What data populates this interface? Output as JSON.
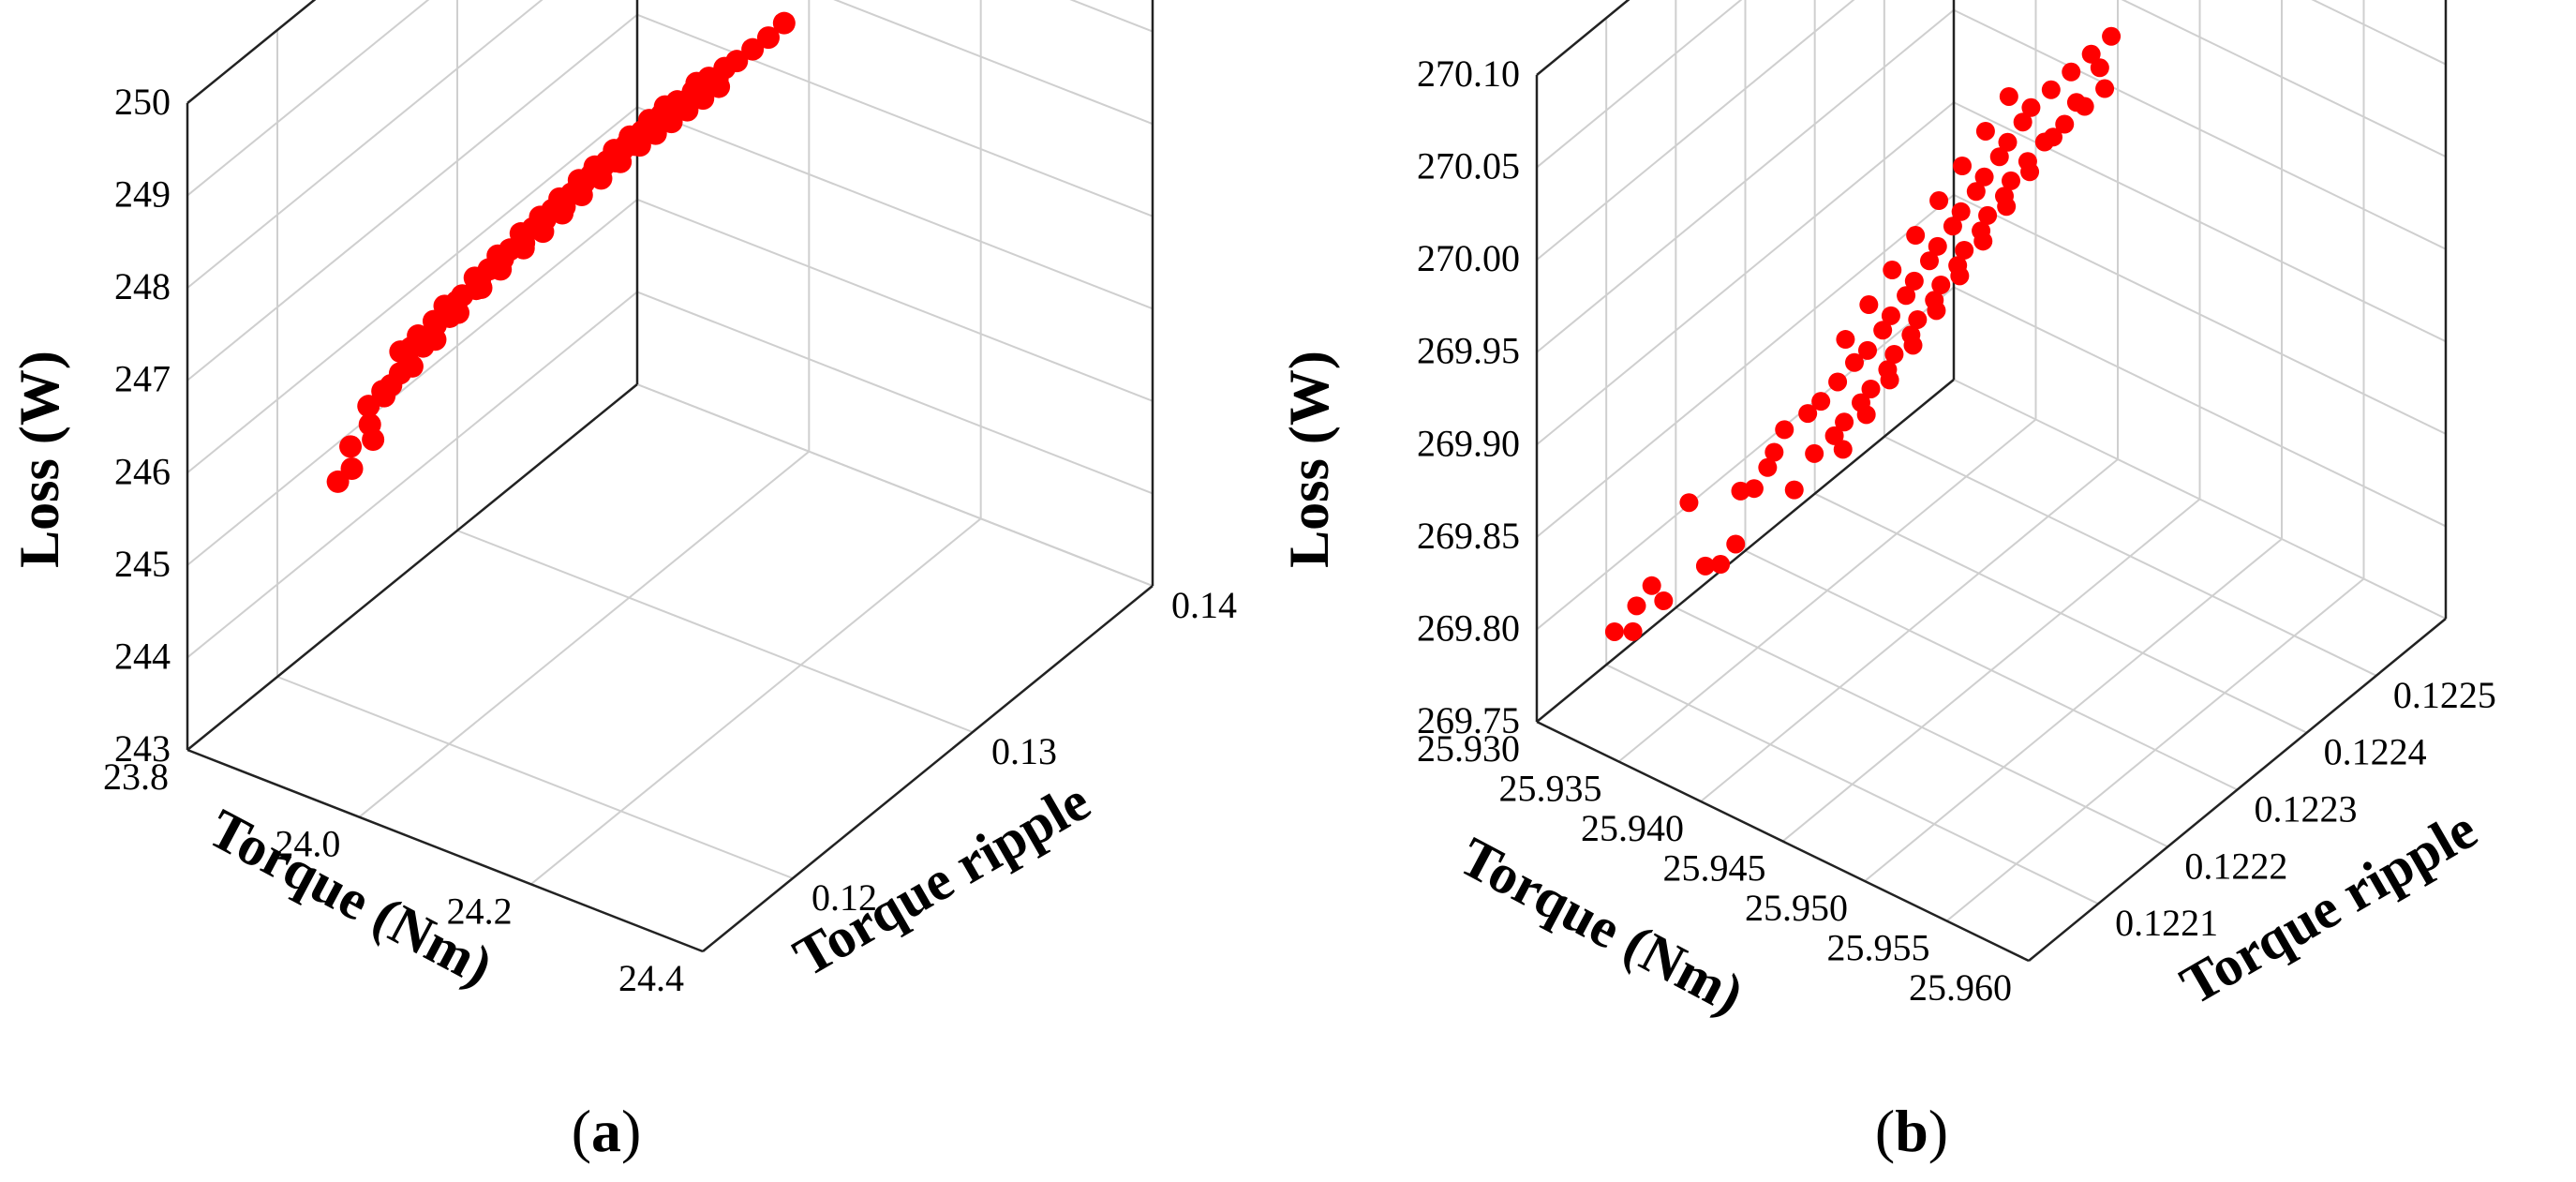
{
  "chart_data": [
    {
      "type": "scatter",
      "panel": "(a)",
      "panel_letter": "a",
      "title": "",
      "xlabel": "Torque (Nm)",
      "ylabel": "Torque ripple",
      "zlabel": "Loss (W)",
      "xlim": [
        23.8,
        24.4
      ],
      "ylim": [
        0.115,
        0.14
      ],
      "zlim": [
        243,
        250
      ],
      "x_ticks": [
        "23.8",
        "24.0",
        "24.2",
        "24.4"
      ],
      "x_tick_values": [
        23.8,
        24.0,
        24.2,
        24.4
      ],
      "y_ticks": [
        "0.12",
        "0.13",
        "0.14"
      ],
      "y_tick_values": [
        0.12,
        0.13,
        0.14
      ],
      "z_ticks": [
        "243",
        "244",
        "245",
        "246",
        "247",
        "248",
        "249",
        "250"
      ],
      "z_tick_values": [
        243,
        244,
        245,
        246,
        247,
        248,
        249,
        250
      ],
      "grid": true,
      "marker_color": "#ff0000",
      "series": [
        {
          "points": [
            [
              23.86,
              0.1205,
              245.25
            ],
            [
              23.86,
              0.1212,
              245.52
            ],
            [
              23.87,
              0.1208,
              245.38
            ],
            [
              23.87,
              0.1218,
              245.7
            ],
            [
              23.88,
              0.1215,
              245.62
            ],
            [
              23.87,
              0.1225,
              245.95
            ],
            [
              23.88,
              0.123,
              246.1
            ],
            [
              23.87,
              0.1235,
              246.22
            ],
            [
              23.88,
              0.124,
              246.35
            ],
            [
              23.89,
              0.1245,
              246.42
            ],
            [
              23.89,
              0.1238,
              246.3
            ],
            [
              23.89,
              0.125,
              246.55
            ],
            [
              23.9,
              0.1255,
              246.62
            ],
            [
              23.9,
              0.1248,
              246.5
            ],
            [
              23.9,
              0.1262,
              246.7
            ],
            [
              23.91,
              0.1265,
              246.78
            ],
            [
              23.91,
              0.1258,
              246.68
            ],
            [
              23.91,
              0.127,
              246.85
            ],
            [
              23.92,
              0.1272,
              246.92
            ],
            [
              23.92,
              0.1266,
              246.84
            ],
            [
              23.92,
              0.1278,
              247.0
            ],
            [
              23.93,
              0.128,
              247.06
            ],
            [
              23.93,
              0.1275,
              246.98
            ],
            [
              23.93,
              0.1284,
              247.12
            ],
            [
              23.94,
              0.1286,
              247.2
            ],
            [
              23.94,
              0.128,
              247.1
            ],
            [
              23.94,
              0.129,
              247.26
            ],
            [
              23.95,
              0.1292,
              247.32
            ],
            [
              23.95,
              0.1288,
              247.24
            ],
            [
              23.95,
              0.1296,
              247.4
            ],
            [
              23.96,
              0.1298,
              247.46
            ],
            [
              23.96,
              0.1292,
              247.38
            ],
            [
              23.96,
              0.13,
              247.52
            ],
            [
              23.97,
              0.1302,
              247.58
            ],
            [
              23.97,
              0.1298,
              247.5
            ],
            [
              23.97,
              0.1306,
              247.64
            ],
            [
              23.98,
              0.1308,
              247.7
            ],
            [
              23.98,
              0.1302,
              247.62
            ],
            [
              23.98,
              0.131,
              247.76
            ],
            [
              23.99,
              0.1312,
              247.82
            ],
            [
              23.99,
              0.1308,
              247.74
            ],
            [
              23.99,
              0.1316,
              247.88
            ],
            [
              24.0,
              0.1318,
              247.94
            ],
            [
              24.0,
              0.1312,
              247.86
            ],
            [
              24.0,
              0.132,
              248.0
            ],
            [
              24.01,
              0.1322,
              248.06
            ],
            [
              24.01,
              0.1318,
              247.98
            ],
            [
              24.02,
              0.1326,
              248.14
            ],
            [
              24.02,
              0.1328,
              248.2
            ],
            [
              24.02,
              0.1322,
              248.1
            ],
            [
              24.03,
              0.133,
              248.26
            ],
            [
              24.03,
              0.1326,
              248.18
            ],
            [
              24.04,
              0.1334,
              248.34
            ],
            [
              24.04,
              0.133,
              248.28
            ],
            [
              24.05,
              0.1336,
              248.42
            ],
            [
              24.06,
              0.134,
              248.52
            ],
            [
              24.07,
              0.1344,
              248.62
            ],
            [
              24.08,
              0.1348,
              248.75
            ],
            [
              23.88,
              0.1225,
              246.05
            ],
            [
              23.89,
              0.1232,
              246.18
            ],
            [
              23.9,
              0.124,
              246.38
            ],
            [
              23.91,
              0.1248,
              246.58
            ],
            [
              23.92,
              0.1256,
              246.76
            ],
            [
              23.93,
              0.1262,
              246.9
            ],
            [
              23.94,
              0.127,
              247.04
            ],
            [
              23.95,
              0.1276,
              247.16
            ],
            [
              23.96,
              0.1282,
              247.3
            ],
            [
              23.97,
              0.1288,
              247.44
            ],
            [
              23.98,
              0.1294,
              247.56
            ],
            [
              23.99,
              0.13,
              247.68
            ],
            [
              24.0,
              0.1306,
              247.8
            ],
            [
              24.01,
              0.131,
              247.9
            ],
            [
              24.02,
              0.1314,
              248.0
            ],
            [
              24.03,
              0.1318,
              248.1
            ],
            [
              24.04,
              0.1322,
              248.2
            ],
            [
              24.05,
              0.1326,
              248.3
            ],
            [
              23.86,
              0.1222,
              245.8
            ],
            [
              23.87,
              0.1226,
              245.88
            ],
            [
              23.88,
              0.1236,
              246.28
            ],
            [
              23.89,
              0.1244,
              246.48
            ],
            [
              23.9,
              0.1252,
              246.6
            ],
            [
              23.91,
              0.126,
              246.74
            ],
            [
              23.92,
              0.1268,
              246.88
            ],
            [
              23.93,
              0.1274,
              247.02
            ],
            [
              23.94,
              0.1282,
              247.16
            ],
            [
              23.95,
              0.1288,
              247.3
            ],
            [
              23.96,
              0.1294,
              247.44
            ],
            [
              23.97,
              0.13,
              247.56
            ],
            [
              23.98,
              0.1306,
              247.68
            ],
            [
              23.99,
              0.131,
              247.8
            ],
            [
              24.0,
              0.1314,
              247.92
            ],
            [
              24.01,
              0.132,
              248.04
            ]
          ]
        }
      ]
    },
    {
      "type": "scatter",
      "panel": "(b)",
      "panel_letter": "b",
      "title": "",
      "xlabel": "Torque (Nm)",
      "ylabel": "Torque ripple",
      "zlabel": "Loss (W)",
      "xlim": [
        25.93,
        25.96
      ],
      "ylim": [
        0.122,
        0.1226
      ],
      "zlim": [
        269.75,
        270.1
      ],
      "x_ticks": [
        "25.930",
        "25.935",
        "25.940",
        "25.945",
        "25.950",
        "25.955",
        "25.960"
      ],
      "x_tick_values": [
        25.93,
        25.935,
        25.94,
        25.945,
        25.95,
        25.955,
        25.96
      ],
      "y_ticks": [
        "0.1221",
        "0.1222",
        "0.1223",
        "0.1224",
        "0.1225"
      ],
      "y_tick_values": [
        0.1221,
        0.1222,
        0.1223,
        0.1224,
        0.1225
      ],
      "z_ticks": [
        "269.75",
        "269.80",
        "269.85",
        "269.90",
        "269.95",
        "270.00",
        "270.05",
        "270.10"
      ],
      "z_tick_values": [
        269.75,
        269.8,
        269.85,
        269.9,
        269.95,
        270.0,
        270.05,
        270.1
      ],
      "grid": true,
      "marker_color": "#ff0000",
      "series": [
        {
          "points": [
            [
              25.9305,
              0.1221,
              269.77
            ],
            [
              25.931,
              0.12212,
              269.78
            ],
            [
              25.9312,
              0.12211,
              269.77
            ],
            [
              25.9315,
              0.12213,
              269.79
            ],
            [
              25.9318,
              0.12214,
              269.78
            ],
            [
              25.9325,
              0.12216,
              269.83
            ],
            [
              25.9335,
              0.12216,
              269.8
            ],
            [
              25.934,
              0.12217,
              269.8
            ],
            [
              25.9345,
              0.12218,
              269.81
            ],
            [
              25.9348,
              0.12218,
              269.84
            ],
            [
              25.9352,
              0.12219,
              269.84
            ],
            [
              25.9356,
              0.1222,
              269.85
            ],
            [
              25.936,
              0.1222,
              269.86
            ],
            [
              25.9362,
              0.12221,
              269.87
            ],
            [
              25.9368,
              0.12221,
              269.84
            ],
            [
              25.9372,
              0.12222,
              269.88
            ],
            [
              25.9376,
              0.12222,
              269.86
            ],
            [
              25.938,
              0.12222,
              269.89
            ],
            [
              25.9384,
              0.12223,
              269.87
            ],
            [
              25.9386,
              0.12223,
              269.9
            ],
            [
              25.939,
              0.12223,
              269.88
            ],
            [
              25.9392,
              0.12224,
              269.91
            ],
            [
              25.9396,
              0.12224,
              269.89
            ],
            [
              25.94,
              0.12224,
              269.92
            ],
            [
              25.9402,
              0.12224,
              269.9
            ],
            [
              25.9405,
              0.12225,
              269.93
            ],
            [
              25.9408,
              0.12225,
              269.91
            ],
            [
              25.941,
              0.12225,
              269.94
            ],
            [
              25.9412,
              0.12225,
              269.92
            ],
            [
              25.9415,
              0.12226,
              269.95
            ],
            [
              25.9418,
              0.12226,
              269.93
            ],
            [
              25.942,
              0.12226,
              269.96
            ],
            [
              25.9422,
              0.12226,
              269.94
            ],
            [
              25.9425,
              0.12227,
              269.97
            ],
            [
              25.9428,
              0.12227,
              269.95
            ],
            [
              25.943,
              0.12227,
              269.98
            ],
            [
              25.9432,
              0.12227,
              269.96
            ],
            [
              25.9435,
              0.12228,
              269.99
            ],
            [
              25.9438,
              0.12228,
              269.97
            ],
            [
              25.944,
              0.12228,
              270.0
            ],
            [
              25.9442,
              0.12228,
              269.98
            ],
            [
              25.9445,
              0.12229,
              270.01
            ],
            [
              25.9448,
              0.12229,
              269.99
            ],
            [
              25.945,
              0.12229,
              270.02
            ],
            [
              25.9452,
              0.12229,
              270.0
            ],
            [
              25.9455,
              0.1223,
              270.03
            ],
            [
              25.9458,
              0.1223,
              270.01
            ],
            [
              25.946,
              0.1223,
              270.04
            ],
            [
              25.9462,
              0.1223,
              270.02
            ],
            [
              25.9465,
              0.12231,
              270.05
            ],
            [
              25.9468,
              0.12231,
              270.03
            ],
            [
              25.947,
              0.12231,
              270.06
            ],
            [
              25.9474,
              0.12232,
              270.04
            ],
            [
              25.9478,
              0.12232,
              270.07
            ],
            [
              25.9482,
              0.12233,
              270.05
            ],
            [
              25.9486,
              0.12233,
              270.08
            ],
            [
              25.949,
              0.12234,
              270.06
            ],
            [
              25.9494,
              0.12234,
              270.09
            ],
            [
              25.9498,
              0.12235,
              270.07
            ],
            [
              25.9502,
              0.12235,
              270.1
            ],
            [
              25.9395,
              0.12222,
              269.93
            ],
            [
              25.9405,
              0.12223,
              269.95
            ],
            [
              25.9415,
              0.12224,
              269.97
            ],
            [
              25.9425,
              0.12225,
              269.99
            ],
            [
              25.9435,
              0.12226,
              270.01
            ],
            [
              25.9445,
              0.12227,
              270.03
            ],
            [
              25.9455,
              0.12228,
              270.05
            ],
            [
              25.9465,
              0.12229,
              270.07
            ],
            [
              25.9385,
              0.12224,
              269.86
            ],
            [
              25.9395,
              0.12225,
              269.88
            ],
            [
              25.9405,
              0.12226,
              269.9
            ],
            [
              25.9415,
              0.12227,
              269.92
            ],
            [
              25.9425,
              0.12228,
              269.94
            ],
            [
              25.9435,
              0.12229,
              269.96
            ],
            [
              25.9445,
              0.1223,
              269.98
            ],
            [
              25.9455,
              0.12231,
              270.0
            ],
            [
              25.9465,
              0.12232,
              270.02
            ],
            [
              25.9475,
              0.12233,
              270.04
            ],
            [
              25.9485,
              0.12234,
              270.06
            ],
            [
              25.9495,
              0.12235,
              270.08
            ]
          ]
        }
      ]
    }
  ]
}
